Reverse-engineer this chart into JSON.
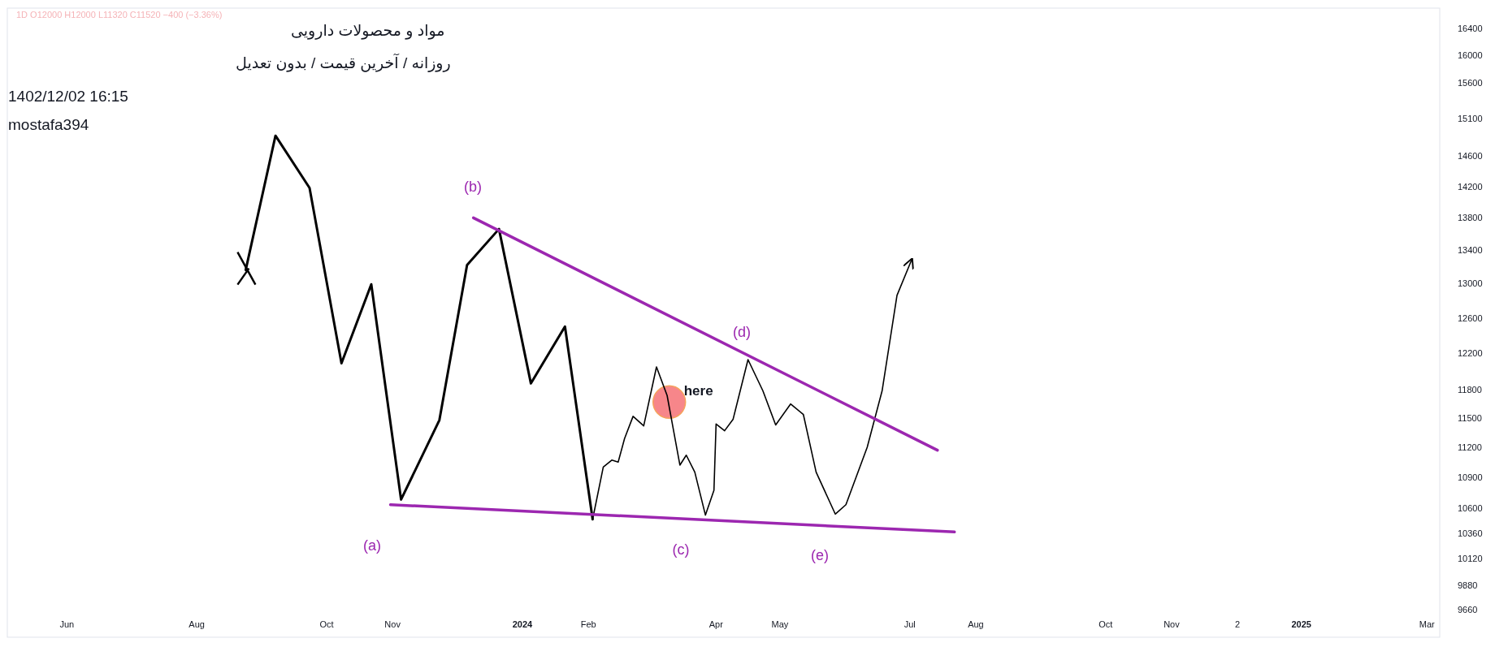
{
  "chart_data": {
    "type": "line",
    "title": "مواد و محصولات دارویی",
    "subtitle": "روزانه / آخرین قیمت / بدون تعدیل",
    "annotations": [
      "1D  O12000  H12000  L11320  C11520  −400 (−3.36%)",
      "1402/12/02 16:15",
      "mostafa394",
      "(a)",
      "(b)",
      "(c)",
      "(d)",
      "(e)",
      {
        "text": "here",
        "x": "2024-03-10",
        "y": 11670
      }
    ],
    "log": true,
    "grid": false,
    "xlim": [
      "2023-05-04",
      "2025-03-07"
    ],
    "ylim": [
      9423,
      16700
    ],
    "xticks": [
      {
        "value": "2023-06-01",
        "label": "Jun"
      },
      {
        "value": "2023-08-01",
        "label": "Aug"
      },
      {
        "value": "2023-10-01",
        "label": "Oct"
      },
      {
        "value": "2023-11-01",
        "label": "Nov"
      },
      {
        "value": "2024-01-01",
        "label": "2024"
      },
      {
        "value": "2024-02-01",
        "label": "Feb"
      },
      {
        "value": "2024-04-01",
        "label": "Apr"
      },
      {
        "value": "2024-05-01",
        "label": "May"
      },
      {
        "value": "2024-07-01",
        "label": "Jul"
      },
      {
        "value": "2024-08-01",
        "label": "Aug"
      },
      {
        "value": "2024-10-01",
        "label": "Oct"
      },
      {
        "value": "2024-11-01",
        "label": "Nov"
      },
      {
        "value": "2024-12-02",
        "label": "2"
      },
      {
        "value": "2025-01-01",
        "label": "2025"
      },
      {
        "value": "2025-03-01",
        "label": "Mar"
      }
    ],
    "yticks": [
      9660,
      9880,
      10120,
      10360,
      10600,
      10900,
      11200,
      11500,
      11800,
      12200,
      12600,
      13000,
      13400,
      13800,
      14200,
      14600,
      15100,
      15600,
      16000,
      16400
    ],
    "series": [
      {
        "color": "#000000",
        "x": [
          "2023-08-24",
          "2023-09-07",
          "2023-09-23",
          "2023-10-08",
          "2023-10-22",
          "2023-11-05",
          "2023-11-23",
          "2023-12-06",
          "2023-12-21",
          "2024-01-05",
          "2024-01-21",
          "2024-02-03"
        ],
        "values": [
          13160,
          14870,
          14180,
          12090,
          12990,
          10680,
          11480,
          13220,
          13660,
          11870,
          12500,
          10490
        ]
      },
      {
        "color": "#000000",
        "x": [
          "2024-02-03",
          "2024-02-08",
          "2024-02-12",
          "2024-02-15",
          "2024-02-18",
          "2024-02-22",
          "2024-02-27",
          "2024-03-04",
          "2024-03-09",
          "2024-03-15",
          "2024-03-18",
          "2024-03-22",
          "2024-03-27",
          "2024-03-31",
          "2024-04-01",
          "2024-04-05",
          "2024-04-09",
          "2024-04-16",
          "2024-04-23",
          "2024-04-29",
          "2024-05-06",
          "2024-05-12",
          "2024-05-18",
          "2024-05-27",
          "2024-06-01",
          "2024-06-11",
          "2024-06-18",
          "2024-06-25",
          "2024-07-02"
        ],
        "values": [
          10490,
          11000,
          11070,
          11050,
          11290,
          11520,
          11420,
          12050,
          11740,
          11020,
          11120,
          10950,
          10530,
          10770,
          11440,
          11370,
          11490,
          12130,
          11790,
          11430,
          11650,
          11540,
          10950,
          10540,
          10630,
          11200,
          11790,
          12860,
          13290
        ]
      },
      {
        "color": "#9c27b0",
        "x": [
          "2023-12-09",
          "2024-07-14"
        ],
        "values": [
          13800,
          11170
        ]
      },
      {
        "color": "#9c27b0",
        "x": [
          "2023-10-31",
          "2024-07-22"
        ],
        "values": [
          10630,
          10370
        ]
      },
      {
        "type": "scatter",
        "marker": "cross",
        "color": "#000000",
        "x": [
          "2023-08-24"
        ],
        "values": [
          13160
        ]
      },
      {
        "type": "scatter",
        "marker": "circle",
        "color": "#f7868a",
        "x": [
          "2024-03-10"
        ],
        "values": [
          11670
        ]
      }
    ]
  }
}
